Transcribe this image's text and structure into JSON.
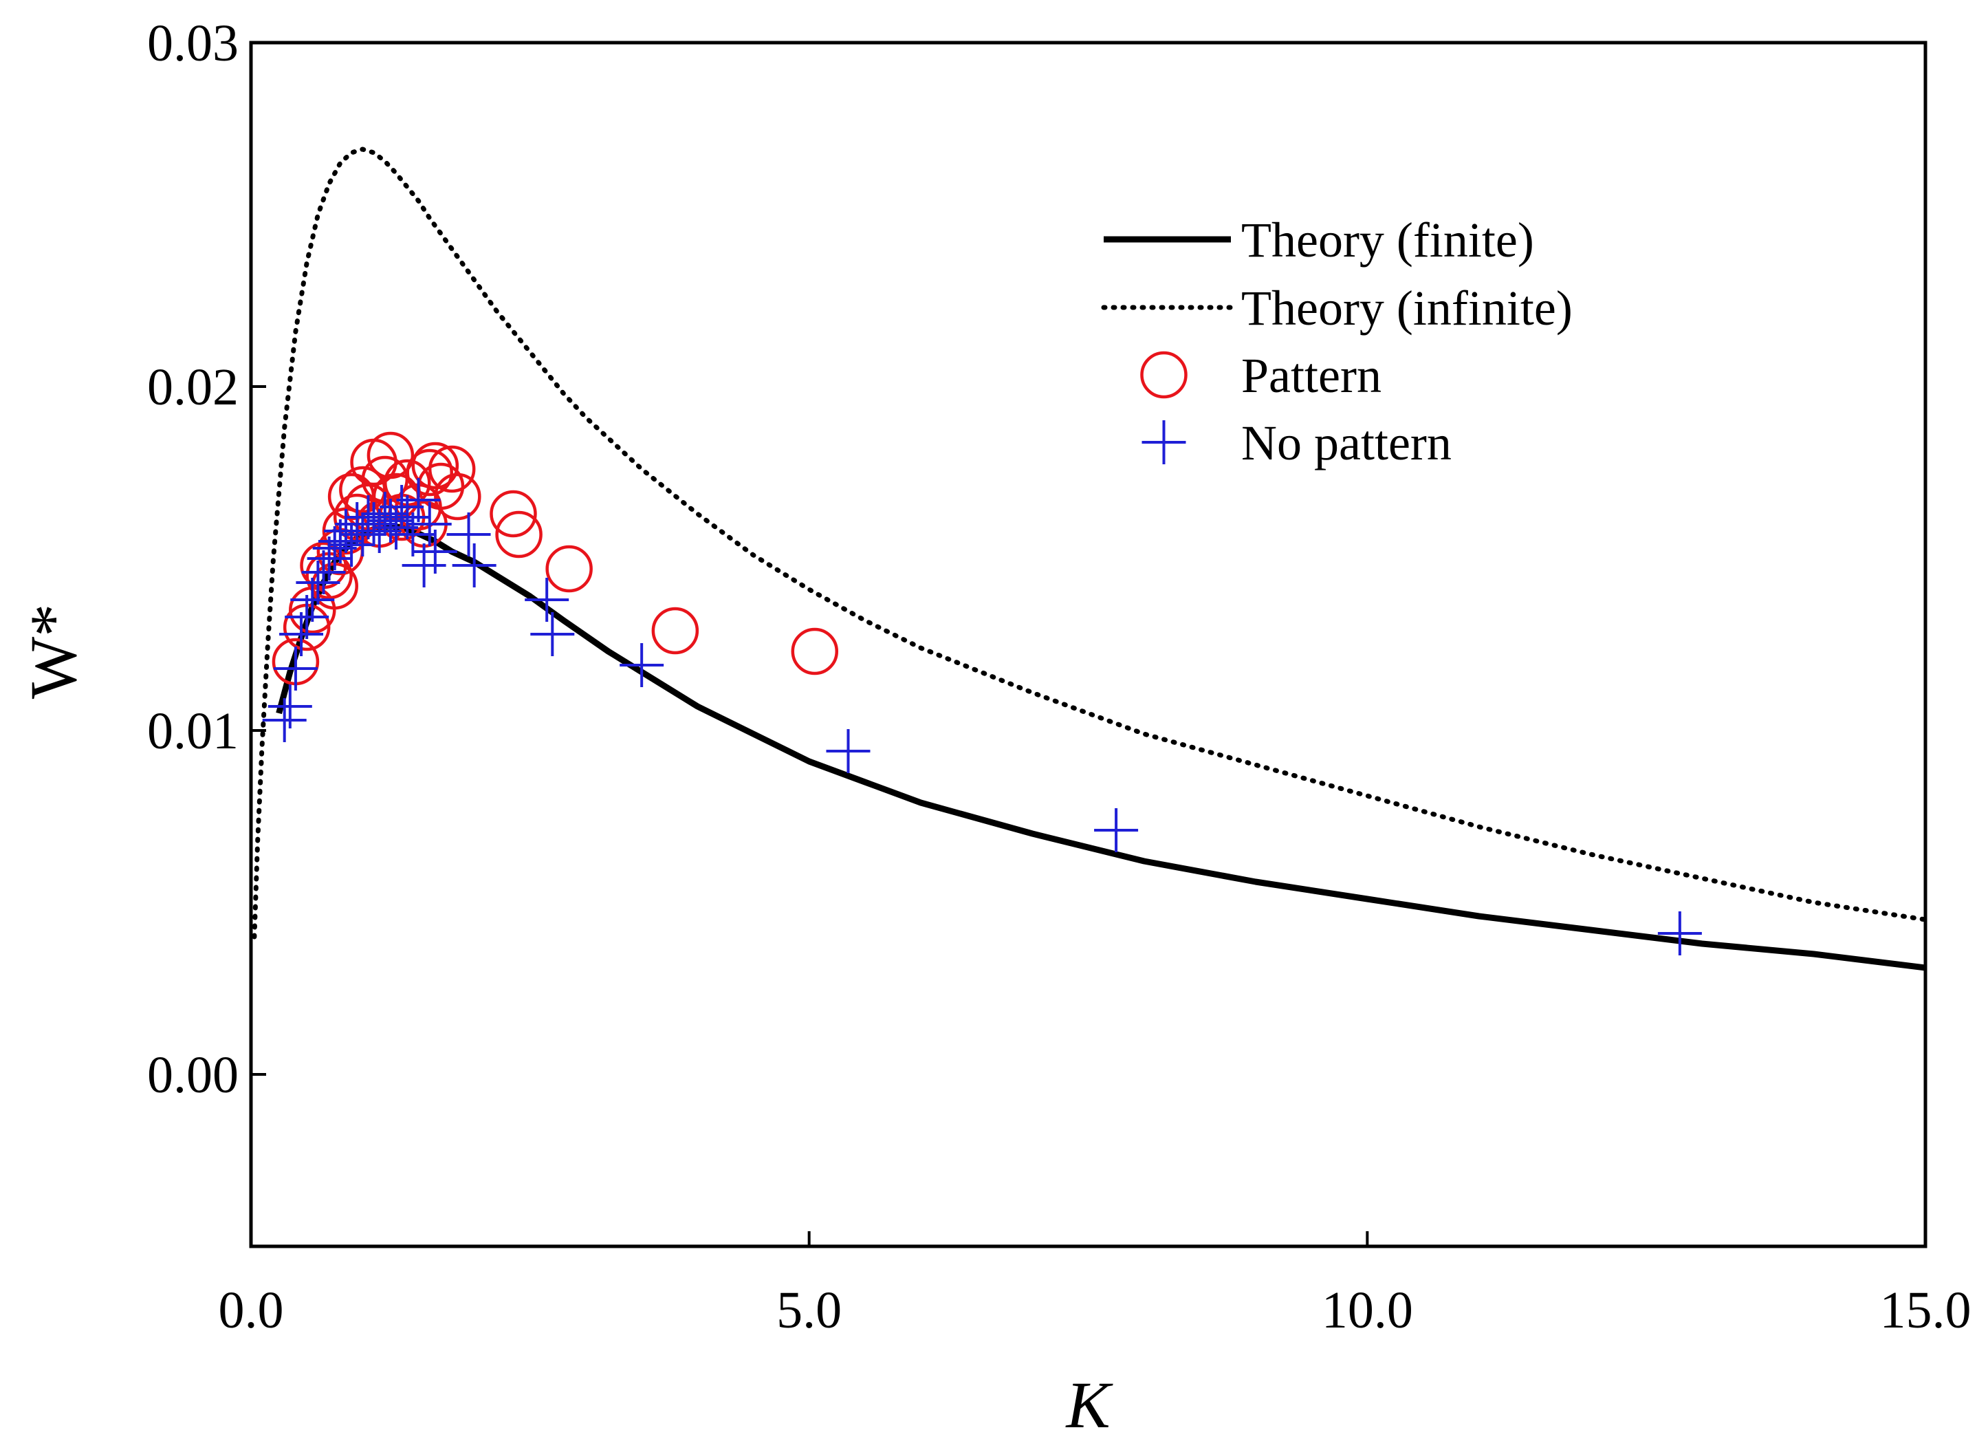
{
  "chart_data": {
    "type": "scatter",
    "xlabel": "K",
    "ylabel": "W*",
    "xlim": [
      0,
      15
    ],
    "ylim": [
      -0.005,
      0.03
    ],
    "x_ticks": [
      "0.0",
      "5.0",
      "10.0",
      "15.0"
    ],
    "x_tick_values": [
      0,
      5,
      10,
      15
    ],
    "y_ticks": [
      "0.00",
      "0.01",
      "0.02",
      "0.03"
    ],
    "y_tick_values": [
      0,
      0.01,
      0.02,
      0.03
    ],
    "grid": false,
    "legend_position": "top-right",
    "colors": {
      "axis": "#000000",
      "theory_finite": "#000000",
      "theory_infinite": "#000000",
      "pattern": "#e8141b",
      "no_pattern": "#1f1fd6"
    },
    "series": [
      {
        "name": "Theory (finite)",
        "kind": "line",
        "style": "solid",
        "x": [
          0.25,
          0.35,
          0.45,
          0.55,
          0.65,
          0.75,
          0.85,
          0.95,
          1.05,
          1.15,
          1.25,
          1.35,
          1.45,
          1.55,
          1.65,
          1.8,
          2.0,
          2.2,
          2.5,
          2.8,
          3.2,
          3.6,
          4.0,
          4.5,
          5.0,
          5.5,
          6.0,
          7.0,
          8.0,
          9.0,
          10.0,
          11.0,
          12.0,
          13.0,
          14.0,
          15.0
        ],
        "y": [
          0.0105,
          0.0117,
          0.0127,
          0.0136,
          0.0143,
          0.0149,
          0.0153,
          0.0156,
          0.0158,
          0.0159,
          0.01595,
          0.0159,
          0.0158,
          0.01565,
          0.0155,
          0.0152,
          0.0149,
          0.0145,
          0.0139,
          0.0132,
          0.0123,
          0.0115,
          0.0107,
          0.0099,
          0.0091,
          0.0085,
          0.0079,
          0.007,
          0.0062,
          0.0056,
          0.0051,
          0.0046,
          0.0042,
          0.0038,
          0.0035,
          0.0031
        ]
      },
      {
        "name": "Theory (infinite)",
        "kind": "line",
        "style": "dotted",
        "x": [
          0.03,
          0.06,
          0.1,
          0.15,
          0.2,
          0.3,
          0.4,
          0.5,
          0.6,
          0.7,
          0.8,
          0.9,
          1.0,
          1.1,
          1.2,
          1.3,
          1.4,
          1.5,
          1.6,
          1.8,
          2.0,
          2.2,
          2.4,
          2.6,
          2.8,
          3.0,
          3.5,
          4.0,
          4.5,
          5.0,
          5.5,
          6.0,
          7.0,
          8.0,
          9.0,
          10.0,
          11.0,
          12.0,
          13.0,
          14.0,
          15.0
        ],
        "y": [
          0.004,
          0.0068,
          0.0096,
          0.0125,
          0.015,
          0.0188,
          0.0216,
          0.0236,
          0.025,
          0.0259,
          0.0265,
          0.0268,
          0.0269,
          0.0268,
          0.02655,
          0.0262,
          0.0258,
          0.0254,
          0.0249,
          0.024,
          0.0231,
          0.0222,
          0.0214,
          0.0206,
          0.0198,
          0.0191,
          0.0176,
          0.0163,
          0.0151,
          0.0141,
          0.0132,
          0.0124,
          0.0111,
          0.0099,
          0.009,
          0.0081,
          0.0072,
          0.0064,
          0.0057,
          0.005,
          0.0045
        ]
      },
      {
        "name": "Pattern",
        "kind": "marker",
        "marker": "circle",
        "x": [
          0.4,
          0.5,
          0.55,
          0.65,
          0.7,
          0.75,
          0.8,
          0.85,
          0.9,
          0.95,
          1.0,
          1.05,
          1.1,
          1.15,
          1.2,
          1.25,
          1.3,
          1.35,
          1.4,
          1.5,
          1.55,
          1.6,
          1.65,
          1.7,
          1.8,
          1.85,
          2.35,
          2.4,
          2.85,
          3.8,
          5.05
        ],
        "y": [
          0.012,
          0.013,
          0.0135,
          0.0148,
          0.0145,
          0.0142,
          0.0152,
          0.0158,
          0.0168,
          0.0162,
          0.017,
          0.0165,
          0.0178,
          0.016,
          0.0173,
          0.018,
          0.0168,
          0.0162,
          0.0172,
          0.0165,
          0.016,
          0.0175,
          0.0177,
          0.0171,
          0.0176,
          0.0168,
          0.0163,
          0.0157,
          0.0147,
          0.0129,
          0.0123
        ]
      },
      {
        "name": "No pattern",
        "kind": "marker",
        "marker": "plus",
        "x": [
          0.3,
          0.35,
          0.4,
          0.45,
          0.5,
          0.55,
          0.6,
          0.65,
          0.7,
          0.75,
          0.8,
          0.85,
          0.9,
          0.95,
          1.0,
          1.05,
          1.1,
          1.15,
          1.2,
          1.25,
          1.3,
          1.35,
          1.4,
          1.45,
          1.5,
          1.55,
          1.6,
          1.65,
          1.95,
          2.0,
          2.65,
          2.7,
          3.5,
          5.35,
          7.75,
          12.8
        ],
        "y": [
          0.0103,
          0.0107,
          0.0118,
          0.0128,
          0.0133,
          0.0138,
          0.0143,
          0.0146,
          0.015,
          0.0153,
          0.0155,
          0.0158,
          0.0154,
          0.016,
          0.0157,
          0.0162,
          0.016,
          0.0158,
          0.0163,
          0.0161,
          0.0159,
          0.0165,
          0.0162,
          0.0157,
          0.0167,
          0.0148,
          0.016,
          0.0152,
          0.0157,
          0.0148,
          0.0138,
          0.0128,
          0.0119,
          0.0094,
          0.0071,
          0.0041
        ]
      }
    ]
  }
}
